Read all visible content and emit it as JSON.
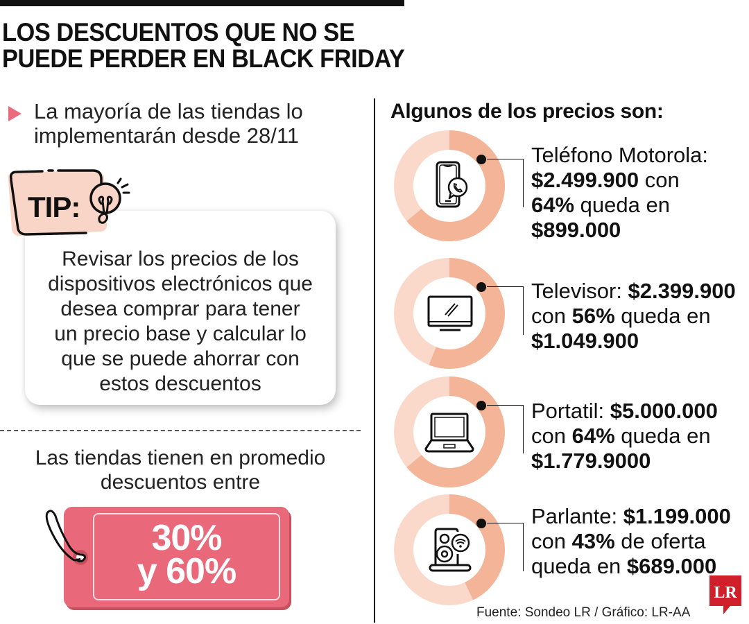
{
  "title": {
    "line1": "LOS DESCUENTOS QUE NO SE",
    "line2": "PUEDE PERDER EN BLACK FRIDAY"
  },
  "intro": {
    "line1": "La mayoría de las tiendas lo",
    "line2": "implementarán desde 28/11"
  },
  "tip": {
    "label": "TIP:",
    "lines": [
      "Revisar los precios de los",
      "dispositivos electrónicos que",
      "desea comprar para tener",
      "un precio base y calcular lo",
      "que se puede ahorrar con",
      "estos descuentos"
    ]
  },
  "average": {
    "line1": "Las tiendas tienen en promedio",
    "line2": "descuentos entre",
    "tag_line1": "30%",
    "tag_line2": "y 60%"
  },
  "prices": {
    "heading": "Algunos de los precios son:",
    "items": [
      {
        "icon": "smartphone-whatsapp-icon",
        "percent": 64,
        "lines": [
          [
            {
              "t": "Teléfono Motorola:",
              "b": false
            }
          ],
          [
            {
              "t": "$2.499.900",
              "b": true
            },
            {
              "t": " con",
              "b": false
            }
          ],
          [
            {
              "t": "64%",
              "b": true
            },
            {
              "t": " queda en",
              "b": false
            }
          ],
          [
            {
              "t": "$899.000",
              "b": true
            }
          ]
        ]
      },
      {
        "icon": "television-icon",
        "percent": 56,
        "lines": [
          [
            {
              "t": "Televisor: ",
              "b": false
            },
            {
              "t": "$2.399.900",
              "b": true
            }
          ],
          [
            {
              "t": "con ",
              "b": false
            },
            {
              "t": "56%",
              "b": true
            },
            {
              "t": " queda en",
              "b": false
            }
          ],
          [
            {
              "t": "$1.049.900",
              "b": true
            }
          ]
        ]
      },
      {
        "icon": "laptop-icon",
        "percent": 64,
        "lines": [
          [
            {
              "t": "Portatil: ",
              "b": false
            },
            {
              "t": "$5.000.000",
              "b": true
            }
          ],
          [
            {
              "t": "con ",
              "b": false
            },
            {
              "t": "64%",
              "b": true
            },
            {
              "t": " queda en",
              "b": false
            }
          ],
          [
            {
              "t": "$1.779.9000",
              "b": true
            }
          ]
        ]
      },
      {
        "icon": "speaker-icon",
        "percent": 43,
        "lines": [
          [
            {
              "t": "Parlante: ",
              "b": false
            },
            {
              "t": "$1.199.000",
              "b": true
            }
          ],
          [
            {
              "t": "con ",
              "b": false
            },
            {
              "t": "43%",
              "b": true
            },
            {
              "t": " de oferta",
              "b": false
            }
          ],
          [
            {
              "t": "queda en ",
              "b": false
            },
            {
              "t": "$689.000",
              "b": true
            }
          ]
        ]
      }
    ]
  },
  "source": "Fuente: Sondeo LR / Gráfico: LR-AA",
  "logo": "LR",
  "colors": {
    "accent_pink": "#e9687a",
    "donut_dark": "#f3b497",
    "donut_light": "#fad9ca",
    "tip_tag_fill": "#f8d5c6",
    "text": "#111111"
  }
}
